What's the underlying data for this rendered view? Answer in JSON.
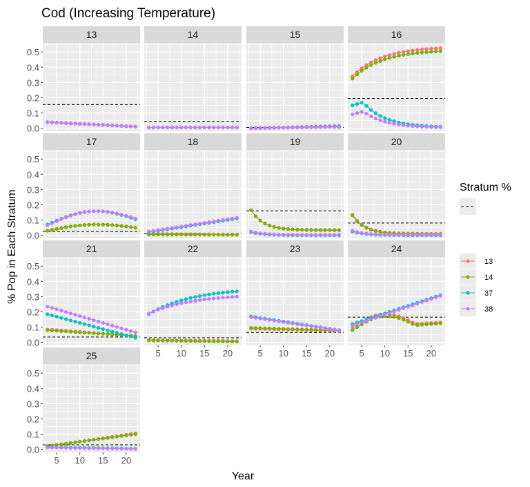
{
  "chart_data": {
    "type": "scatter",
    "title": "Cod  (Increasing Temperature)",
    "xlabel": "Year",
    "ylabel": "% Pop in Each Stratum",
    "xlim": [
      2.0,
      23.0
    ],
    "ylim": [
      -0.02,
      0.56
    ],
    "x_ticks": [
      5,
      10,
      15,
      20
    ],
    "y_ticks": [
      0.0,
      0.1,
      0.2,
      0.3,
      0.4,
      0.5
    ],
    "x_tick_labels": [
      "5",
      "10",
      "15",
      "20"
    ],
    "y_tick_labels": [
      "0.0",
      "0.1",
      "0.2",
      "0.3",
      "0.4",
      "0.5"
    ],
    "grid": true,
    "x": [
      3,
      4,
      5,
      6,
      7,
      8,
      9,
      10,
      11,
      12,
      13,
      14,
      15,
      16,
      17,
      18,
      19,
      20,
      21,
      22
    ],
    "legend": {
      "position": "right",
      "stratum_title": "Stratum %",
      "title": "",
      "series": [
        {
          "name": "13",
          "color": "#F8766D"
        },
        {
          "name": "14",
          "color": "#7CAE00"
        },
        {
          "name": "37",
          "color": "#00BFC4"
        },
        {
          "name": "38",
          "color": "#C77CFF"
        }
      ]
    },
    "facets": [
      {
        "label": "13",
        "stratum_pct": 0.155,
        "series": [
          {
            "name": "13",
            "start": 0.04,
            "end": 0.01,
            "shape": 1
          },
          {
            "name": "14",
            "start": 0.04,
            "end": 0.01,
            "shape": 1
          },
          {
            "name": "37",
            "start": 0.04,
            "end": 0.01,
            "shape": 1
          },
          {
            "name": "38",
            "start": 0.04,
            "end": 0.01,
            "shape": 1
          }
        ]
      },
      {
        "label": "14",
        "stratum_pct": 0.045,
        "series": [
          {
            "name": "13",
            "start": 0.005,
            "end": 0.005,
            "shape": 1
          },
          {
            "name": "14",
            "start": 0.005,
            "end": 0.005,
            "shape": 1
          },
          {
            "name": "37",
            "start": 0.005,
            "end": 0.005,
            "shape": 1
          },
          {
            "name": "38",
            "start": 0.005,
            "end": 0.005,
            "shape": 1
          }
        ]
      },
      {
        "label": "15",
        "stratum_pct": 0.005,
        "series": [
          {
            "name": "13",
            "start": 0.0,
            "end": 0.015,
            "shape": 1
          },
          {
            "name": "14",
            "start": 0.0,
            "end": 0.01,
            "shape": 1
          },
          {
            "name": "37",
            "start": 0.0,
            "end": 0.012,
            "shape": 1
          },
          {
            "name": "38",
            "start": 0.0,
            "end": 0.008,
            "shape": 1
          }
        ]
      },
      {
        "label": "16",
        "stratum_pct": 0.195,
        "series": [
          {
            "name": "13",
            "start": 0.34,
            "end": 0.525,
            "shape": 2
          },
          {
            "name": "14",
            "start": 0.325,
            "end": 0.505,
            "shape": 2
          },
          {
            "name": "37",
            "start": 0.15,
            "end": 0.005,
            "shape": 5
          },
          {
            "name": "38",
            "start": 0.09,
            "end": 0.003,
            "shape": 5
          }
        ]
      },
      {
        "label": "17",
        "stratum_pct": 0.025,
        "series": [
          {
            "name": "13",
            "start": 0.03,
            "end": 0.05,
            "shape": 3
          },
          {
            "name": "14",
            "start": 0.03,
            "end": 0.05,
            "shape": 3
          },
          {
            "name": "37",
            "start": 0.07,
            "end": 0.105,
            "shape": 4
          },
          {
            "name": "38",
            "start": 0.065,
            "end": 0.11,
            "shape": 4
          }
        ]
      },
      {
        "label": "18",
        "stratum_pct": 0.01,
        "series": [
          {
            "name": "13",
            "start": 0.01,
            "end": 0.005,
            "shape": 1
          },
          {
            "name": "14",
            "start": 0.005,
            "end": 0.003,
            "shape": 1
          },
          {
            "name": "37",
            "start": 0.02,
            "end": 0.11,
            "shape": 1
          },
          {
            "name": "38",
            "start": 0.025,
            "end": 0.115,
            "shape": 1
          }
        ]
      },
      {
        "label": "19",
        "stratum_pct": 0.16,
        "series": [
          {
            "name": "13",
            "start": 0.165,
            "end": 0.035,
            "shape": 6
          },
          {
            "name": "14",
            "start": 0.165,
            "end": 0.033,
            "shape": 6
          },
          {
            "name": "37",
            "start": 0.02,
            "end": 0.0,
            "shape": 6
          },
          {
            "name": "38",
            "start": 0.025,
            "end": 0.003,
            "shape": 6
          }
        ]
      },
      {
        "label": "20",
        "stratum_pct": 0.08,
        "series": [
          {
            "name": "13",
            "start": 0.135,
            "end": 0.01,
            "shape": 6
          },
          {
            "name": "14",
            "start": 0.13,
            "end": 0.008,
            "shape": 6
          },
          {
            "name": "37",
            "start": 0.025,
            "end": 0.0,
            "shape": 6
          },
          {
            "name": "38",
            "start": 0.03,
            "end": 0.003,
            "shape": 6
          }
        ]
      },
      {
        "label": "21",
        "stratum_pct": 0.035,
        "series": [
          {
            "name": "13",
            "start": 0.085,
            "end": 0.04,
            "shape": 1
          },
          {
            "name": "14",
            "start": 0.08,
            "end": 0.042,
            "shape": 1
          },
          {
            "name": "37",
            "start": 0.185,
            "end": 0.03,
            "shape": 1
          },
          {
            "name": "38",
            "start": 0.235,
            "end": 0.065,
            "shape": 1
          }
        ]
      },
      {
        "label": "22",
        "stratum_pct": 0.03,
        "series": [
          {
            "name": "13",
            "start": 0.015,
            "end": 0.008,
            "shape": 1
          },
          {
            "name": "14",
            "start": 0.012,
            "end": 0.005,
            "shape": 1
          },
          {
            "name": "37",
            "start": 0.185,
            "end": 0.335,
            "shape": 7
          },
          {
            "name": "38",
            "start": 0.19,
            "end": 0.3,
            "shape": 7
          }
        ]
      },
      {
        "label": "23",
        "stratum_pct": 0.065,
        "series": [
          {
            "name": "13",
            "start": 0.09,
            "end": 0.075,
            "shape": 1
          },
          {
            "name": "14",
            "start": 0.095,
            "end": 0.078,
            "shape": 1
          },
          {
            "name": "37",
            "start": 0.17,
            "end": 0.08,
            "shape": 1
          },
          {
            "name": "38",
            "start": 0.165,
            "end": 0.078,
            "shape": 1
          }
        ]
      },
      {
        "label": "24",
        "stratum_pct": 0.165,
        "series": [
          {
            "name": "13",
            "start": 0.1,
            "end": 0.13,
            "shape": 8
          },
          {
            "name": "14",
            "start": 0.08,
            "end": 0.125,
            "shape": 8
          },
          {
            "name": "37",
            "start": 0.12,
            "end": 0.31,
            "shape": 1
          },
          {
            "name": "38",
            "start": 0.11,
            "end": 0.305,
            "shape": 1
          }
        ]
      },
      {
        "label": "25",
        "stratum_pct": 0.03,
        "series": [
          {
            "name": "13",
            "start": 0.02,
            "end": 0.105,
            "shape": 1
          },
          {
            "name": "14",
            "start": 0.022,
            "end": 0.1,
            "shape": 1
          },
          {
            "name": "37",
            "start": 0.015,
            "end": 0.005,
            "shape": 1
          },
          {
            "name": "38",
            "start": 0.012,
            "end": 0.003,
            "shape": 1
          }
        ]
      }
    ]
  }
}
